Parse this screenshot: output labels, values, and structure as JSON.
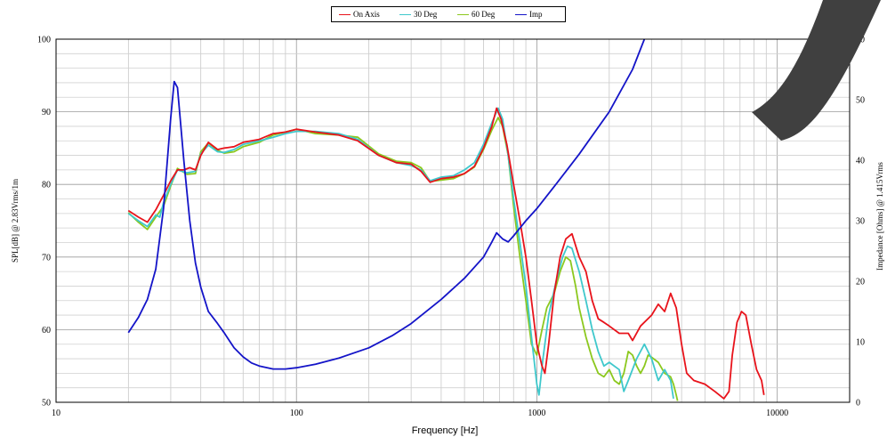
{
  "chart_data": {
    "type": "line",
    "xlabel": "Frequency [Hz]",
    "ylabel_left": "SPL[dB] @ 2.83Vrms/1m",
    "ylabel_right": "Impedance [Ohms] @ 1.415Vrms",
    "x_scale": "log",
    "xlim": [
      10,
      20000
    ],
    "ylim_left": [
      50,
      100
    ],
    "ylim_right": [
      0,
      60
    ],
    "x_ticks": [
      "10",
      "100",
      "1000",
      "10000"
    ],
    "y_ticks_left": [
      "50",
      "60",
      "70",
      "80",
      "90",
      "100"
    ],
    "y_ticks_right": [
      "0",
      "10",
      "20",
      "30",
      "40",
      "50",
      "60"
    ],
    "grid": true,
    "legend_position": "top-center",
    "series": [
      {
        "name": "On Axis",
        "color": "#e8131b",
        "axis": "left",
        "points": [
          [
            20,
            76.4
          ],
          [
            22,
            75.5
          ],
          [
            24,
            74.8
          ],
          [
            26,
            76.5
          ],
          [
            28,
            78.5
          ],
          [
            30,
            80.5
          ],
          [
            32,
            82.0
          ],
          [
            34,
            82.0
          ],
          [
            36,
            82.3
          ],
          [
            38,
            82.0
          ],
          [
            40,
            84.0
          ],
          [
            43,
            85.8
          ],
          [
            47,
            84.8
          ],
          [
            50,
            85.0
          ],
          [
            55,
            85.2
          ],
          [
            60,
            85.8
          ],
          [
            70,
            86.2
          ],
          [
            80,
            87.0
          ],
          [
            90,
            87.2
          ],
          [
            100,
            87.6
          ],
          [
            120,
            87.2
          ],
          [
            150,
            86.8
          ],
          [
            180,
            86.0
          ],
          [
            220,
            84.0
          ],
          [
            260,
            83.0
          ],
          [
            300,
            82.8
          ],
          [
            330,
            81.8
          ],
          [
            360,
            80.3
          ],
          [
            400,
            80.8
          ],
          [
            450,
            81.0
          ],
          [
            500,
            81.5
          ],
          [
            550,
            82.5
          ],
          [
            600,
            85.0
          ],
          [
            650,
            88.0
          ],
          [
            680,
            90.5
          ],
          [
            710,
            89.0
          ],
          [
            750,
            85.5
          ],
          [
            800,
            80.0
          ],
          [
            850,
            75.0
          ],
          [
            900,
            70.0
          ],
          [
            950,
            64.0
          ],
          [
            1000,
            58.0
          ],
          [
            1050,
            55.0
          ],
          [
            1080,
            54.0
          ],
          [
            1120,
            58.0
          ],
          [
            1180,
            65.0
          ],
          [
            1250,
            70.0
          ],
          [
            1320,
            72.5
          ],
          [
            1400,
            73.2
          ],
          [
            1500,
            70.0
          ],
          [
            1600,
            68.0
          ],
          [
            1700,
            64.0
          ],
          [
            1800,
            61.5
          ],
          [
            1900,
            61.0
          ],
          [
            2000,
            60.5
          ],
          [
            2200,
            59.5
          ],
          [
            2400,
            59.5
          ],
          [
            2500,
            58.5
          ],
          [
            2700,
            60.5
          ],
          [
            3000,
            62.0
          ],
          [
            3200,
            63.5
          ],
          [
            3400,
            62.5
          ],
          [
            3600,
            65.0
          ],
          [
            3800,
            63.0
          ],
          [
            4000,
            58.0
          ],
          [
            4200,
            54.0
          ],
          [
            4500,
            53.0
          ],
          [
            5000,
            52.5
          ],
          [
            5500,
            51.5
          ],
          [
            6000,
            50.5
          ],
          [
            6300,
            51.5
          ],
          [
            6500,
            56.5
          ],
          [
            6800,
            61.0
          ],
          [
            7100,
            62.5
          ],
          [
            7400,
            62.0
          ],
          [
            7800,
            58.0
          ],
          [
            8200,
            54.5
          ],
          [
            8600,
            53.0
          ],
          [
            8800,
            51.0
          ]
        ]
      },
      {
        "name": "30 Deg",
        "color": "#3fc8cc",
        "axis": "left",
        "points": [
          [
            20,
            76.0
          ],
          [
            22,
            75.0
          ],
          [
            24,
            74.2
          ],
          [
            26,
            75.8
          ],
          [
            27,
            75.5
          ],
          [
            28,
            77.5
          ],
          [
            30,
            80.0
          ],
          [
            32,
            82.0
          ],
          [
            35,
            81.6
          ],
          [
            38,
            81.8
          ],
          [
            40,
            84.2
          ],
          [
            43,
            85.4
          ],
          [
            47,
            84.5
          ],
          [
            50,
            84.4
          ],
          [
            55,
            84.8
          ],
          [
            60,
            85.5
          ],
          [
            70,
            86.0
          ],
          [
            80,
            86.5
          ],
          [
            90,
            87.0
          ],
          [
            100,
            87.3
          ],
          [
            120,
            87.3
          ],
          [
            150,
            87.0
          ],
          [
            180,
            86.2
          ],
          [
            220,
            84.0
          ],
          [
            260,
            83.0
          ],
          [
            300,
            82.6
          ],
          [
            330,
            82.0
          ],
          [
            360,
            80.5
          ],
          [
            400,
            81.0
          ],
          [
            450,
            81.2
          ],
          [
            500,
            82.0
          ],
          [
            550,
            83.0
          ],
          [
            600,
            85.5
          ],
          [
            650,
            88.5
          ],
          [
            690,
            90.5
          ],
          [
            720,
            89.0
          ],
          [
            760,
            84.0
          ],
          [
            800,
            78.0
          ],
          [
            850,
            72.0
          ],
          [
            900,
            66.0
          ],
          [
            950,
            59.0
          ],
          [
            1000,
            52.5
          ],
          [
            1020,
            51.0
          ],
          [
            1060,
            56.0
          ],
          [
            1120,
            62.0
          ],
          [
            1200,
            66.5
          ],
          [
            1280,
            70.0
          ],
          [
            1340,
            71.5
          ],
          [
            1400,
            71.2
          ],
          [
            1500,
            68.0
          ],
          [
            1600,
            64.0
          ],
          [
            1700,
            60.0
          ],
          [
            1800,
            57.0
          ],
          [
            1900,
            55.0
          ],
          [
            2000,
            55.5
          ],
          [
            2200,
            54.5
          ],
          [
            2300,
            51.5
          ],
          [
            2400,
            53.0
          ],
          [
            2600,
            56.0
          ],
          [
            2800,
            58.0
          ],
          [
            3000,
            56.0
          ],
          [
            3200,
            53.0
          ],
          [
            3400,
            54.5
          ],
          [
            3600,
            53.0
          ],
          [
            3700,
            50.5
          ]
        ]
      },
      {
        "name": "60 Deg",
        "color": "#8cc81e",
        "axis": "left",
        "points": [
          [
            20,
            76.1
          ],
          [
            22,
            74.8
          ],
          [
            24,
            73.8
          ],
          [
            26,
            75.5
          ],
          [
            28,
            77.0
          ],
          [
            30,
            79.8
          ],
          [
            32,
            82.2
          ],
          [
            35,
            81.4
          ],
          [
            38,
            81.5
          ],
          [
            40,
            84.5
          ],
          [
            43,
            85.7
          ],
          [
            47,
            84.7
          ],
          [
            50,
            84.3
          ],
          [
            55,
            84.5
          ],
          [
            60,
            85.2
          ],
          [
            70,
            85.8
          ],
          [
            80,
            86.8
          ],
          [
            90,
            87.2
          ],
          [
            100,
            87.6
          ],
          [
            120,
            87.0
          ],
          [
            150,
            86.8
          ],
          [
            180,
            86.5
          ],
          [
            220,
            84.2
          ],
          [
            260,
            83.2
          ],
          [
            300,
            83.0
          ],
          [
            330,
            82.3
          ],
          [
            360,
            80.4
          ],
          [
            400,
            80.6
          ],
          [
            450,
            80.8
          ],
          [
            500,
            81.5
          ],
          [
            550,
            82.4
          ],
          [
            600,
            84.8
          ],
          [
            650,
            87.5
          ],
          [
            690,
            89.2
          ],
          [
            720,
            88.0
          ],
          [
            760,
            84.0
          ],
          [
            800,
            77.0
          ],
          [
            850,
            70.0
          ],
          [
            900,
            64.0
          ],
          [
            950,
            58.0
          ],
          [
            1000,
            56.5
          ],
          [
            1050,
            60.0
          ],
          [
            1100,
            63.0
          ],
          [
            1180,
            65.0
          ],
          [
            1250,
            68.0
          ],
          [
            1320,
            70.0
          ],
          [
            1380,
            69.5
          ],
          [
            1450,
            66.0
          ],
          [
            1500,
            63.0
          ],
          [
            1600,
            59.0
          ],
          [
            1700,
            56.0
          ],
          [
            1800,
            54.0
          ],
          [
            1900,
            53.5
          ],
          [
            2000,
            54.5
          ],
          [
            2100,
            53.0
          ],
          [
            2200,
            52.5
          ],
          [
            2300,
            54.0
          ],
          [
            2400,
            57.0
          ],
          [
            2500,
            56.5
          ],
          [
            2600,
            55.0
          ],
          [
            2700,
            54.0
          ],
          [
            2800,
            55.0
          ],
          [
            2900,
            56.5
          ],
          [
            3000,
            56.2
          ],
          [
            3200,
            55.5
          ],
          [
            3400,
            54.0
          ],
          [
            3600,
            53.5
          ],
          [
            3700,
            52.5
          ],
          [
            3800,
            51.0
          ],
          [
            3850,
            50.2
          ]
        ]
      },
      {
        "name": "Imp",
        "color": "#1414c8",
        "axis": "right",
        "points": [
          [
            20,
            11.5
          ],
          [
            22,
            14.0
          ],
          [
            24,
            17.0
          ],
          [
            26,
            22.0
          ],
          [
            28,
            32.0
          ],
          [
            30,
            47.0
          ],
          [
            31,
            53.0
          ],
          [
            32,
            52.0
          ],
          [
            34,
            40.0
          ],
          [
            36,
            30.0
          ],
          [
            38,
            23.0
          ],
          [
            40,
            19.0
          ],
          [
            43,
            15.0
          ],
          [
            47,
            13.0
          ],
          [
            50,
            11.5
          ],
          [
            55,
            9.0
          ],
          [
            60,
            7.5
          ],
          [
            65,
            6.5
          ],
          [
            70,
            6.0
          ],
          [
            80,
            5.5
          ],
          [
            90,
            5.5
          ],
          [
            100,
            5.7
          ],
          [
            120,
            6.3
          ],
          [
            150,
            7.3
          ],
          [
            200,
            9.0
          ],
          [
            250,
            11.0
          ],
          [
            300,
            13.0
          ],
          [
            400,
            17.0
          ],
          [
            500,
            20.5
          ],
          [
            600,
            24.0
          ],
          [
            650,
            26.5
          ],
          [
            680,
            28.0
          ],
          [
            720,
            27.0
          ],
          [
            760,
            26.5
          ],
          [
            800,
            27.5
          ],
          [
            900,
            30.0
          ],
          [
            1000,
            32.0
          ],
          [
            1200,
            36.0
          ],
          [
            1500,
            41.0
          ],
          [
            2000,
            48.0
          ],
          [
            2500,
            55.0
          ],
          [
            2800,
            60.0
          ]
        ]
      }
    ]
  }
}
